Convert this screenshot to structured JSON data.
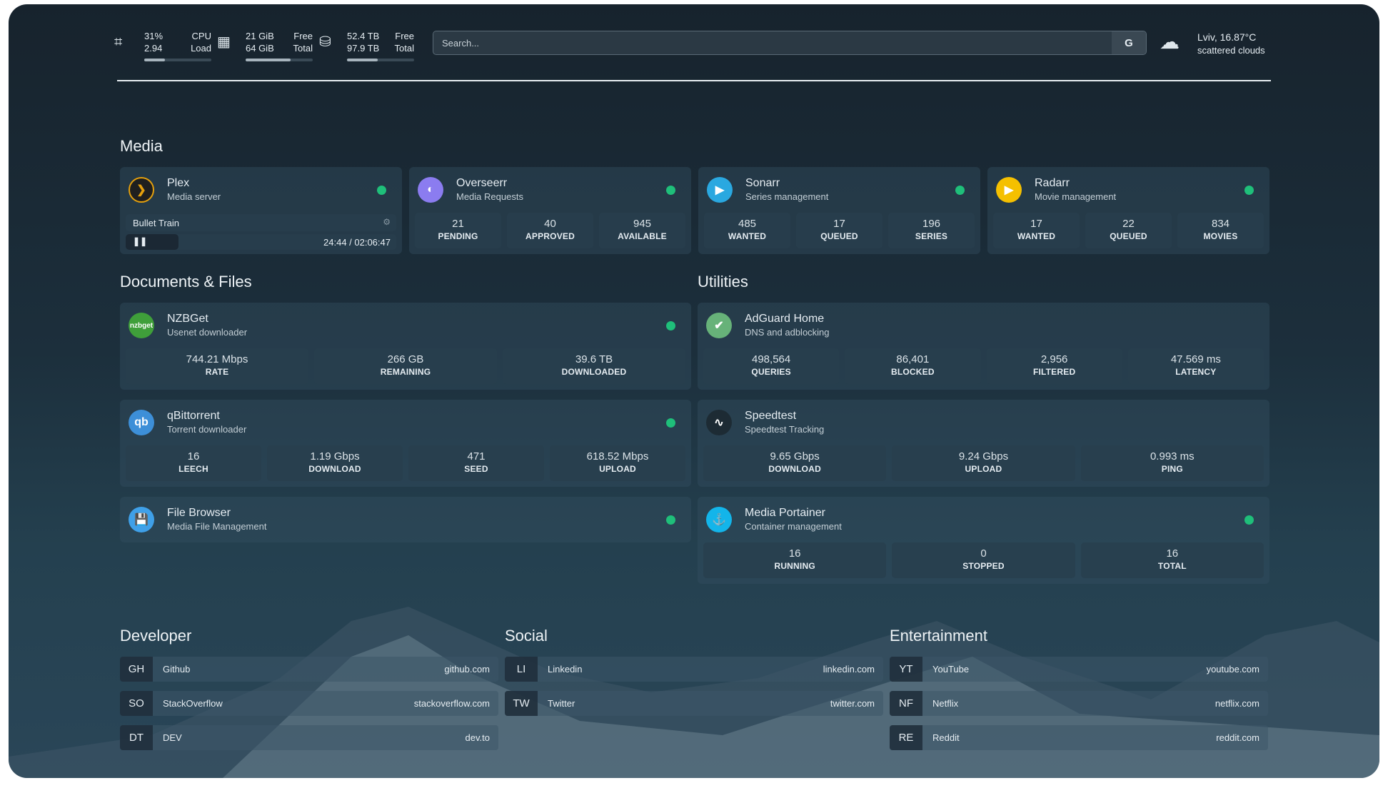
{
  "header": {
    "cpu": {
      "value": "31%",
      "load": "2.94",
      "label1": "CPU",
      "label2": "Load",
      "fill": 0.31,
      "icon": "cpu-icon"
    },
    "memory": {
      "value": "21 GiB",
      "total": "64 GiB",
      "label1": "Free",
      "label2": "Total",
      "fill": 0.67,
      "icon": "memory-icon"
    },
    "disk": {
      "value": "52.4 TB",
      "total": "97.9 TB",
      "label1": "Free",
      "label2": "Total",
      "fill": 0.46,
      "icon": "disk-icon"
    },
    "search": {
      "placeholder": "Search...",
      "button": "G"
    },
    "weather": {
      "location_temp": "Lviv, 16.87°C",
      "condition": "scattered clouds",
      "icon": "cloud-icon"
    }
  },
  "sections": {
    "media": "Media",
    "docs": "Documents & Files",
    "utilities": "Utilities",
    "developer": "Developer",
    "social": "Social",
    "entertainment": "Entertainment"
  },
  "plex": {
    "name": "Plex",
    "desc": "Media server",
    "stream_title": "Bullet Train",
    "time": "24:44 / 02:06:47",
    "progress": 0.195
  },
  "cards": [
    {
      "id": "overseerr",
      "name": "Overseerr",
      "desc": "Media Requests",
      "color": "#8b7cf0",
      "logo": "◐",
      "stats": [
        [
          "21",
          "PENDING"
        ],
        [
          "40",
          "APPROVED"
        ],
        [
          "945",
          "AVAILABLE"
        ]
      ]
    },
    {
      "id": "sonarr",
      "name": "Sonarr",
      "desc": "Series management",
      "color": "#2aa8e0",
      "logo": "▶",
      "stats": [
        [
          "485",
          "WANTED"
        ],
        [
          "17",
          "QUEUED"
        ],
        [
          "196",
          "SERIES"
        ]
      ]
    },
    {
      "id": "radarr",
      "name": "Radarr",
      "desc": "Movie management",
      "color": "#f5c000",
      "logo": "▶",
      "stats": [
        [
          "17",
          "WANTED"
        ],
        [
          "22",
          "QUEUED"
        ],
        [
          "834",
          "MOVIES"
        ]
      ]
    },
    {
      "id": "nzbget",
      "name": "NZBGet",
      "desc": "Usenet downloader",
      "color": "#3f9f3a",
      "logo": "nzbget",
      "stats": [
        [
          "744.21 Mbps",
          "RATE"
        ],
        [
          "266 GB",
          "REMAINING"
        ],
        [
          "39.6 TB",
          "DOWNLOADED"
        ]
      ]
    },
    {
      "id": "adguard",
      "name": "AdGuard Home",
      "desc": "DNS and adblocking",
      "color": "#67b279",
      "logo": "✔",
      "nodot": true,
      "stats": [
        [
          "498,564",
          "QUERIES"
        ],
        [
          "86,401",
          "BLOCKED"
        ],
        [
          "2,956",
          "FILTERED"
        ],
        [
          "47.569 ms",
          "LATENCY"
        ]
      ]
    },
    {
      "id": "qbittorrent",
      "name": "qBittorrent",
      "desc": "Torrent downloader",
      "color": "#3d8fd8",
      "logo": "qb",
      "stats": [
        [
          "16",
          "LEECH"
        ],
        [
          "1.19 Gbps",
          "DOWNLOAD"
        ],
        [
          "471",
          "SEED"
        ],
        [
          "618.52 Mbps",
          "UPLOAD"
        ]
      ]
    },
    {
      "id": "speedtest",
      "name": "Speedtest",
      "desc": "Speedtest Tracking",
      "color": "#1d2b34",
      "logo": "∿",
      "nodot": true,
      "stats": [
        [
          "9.65 Gbps",
          "DOWNLOAD"
        ],
        [
          "9.24 Gbps",
          "UPLOAD"
        ],
        [
          "0.993 ms",
          "PING"
        ]
      ]
    },
    {
      "id": "filebrowser",
      "name": "File Browser",
      "desc": "Media File Management",
      "color": "#3fa0e8",
      "logo": "💾",
      "stats": []
    },
    {
      "id": "portainer",
      "name": "Media Portainer",
      "desc": "Container management",
      "color": "#13b5ea",
      "logo": "⚓",
      "nodot": false,
      "stats": [
        [
          "16",
          "RUNNING"
        ],
        [
          "0",
          "STOPPED"
        ],
        [
          "16",
          "TOTAL"
        ]
      ]
    }
  ],
  "links": {
    "developer": [
      [
        "GH",
        "Github",
        "github.com"
      ],
      [
        "SO",
        "StackOverflow",
        "stackoverflow.com"
      ],
      [
        "DT",
        "DEV",
        "dev.to"
      ]
    ],
    "social": [
      [
        "LI",
        "Linkedin",
        "linkedin.com"
      ],
      [
        "TW",
        "Twitter",
        "twitter.com"
      ]
    ],
    "entertainment": [
      [
        "YT",
        "YouTube",
        "youtube.com"
      ],
      [
        "NF",
        "Netflix",
        "netflix.com"
      ],
      [
        "RE",
        "Reddit",
        "reddit.com"
      ]
    ]
  },
  "colors": {
    "status_online": "#1fbf7a",
    "accent_bar": "#a7b4bd"
  }
}
